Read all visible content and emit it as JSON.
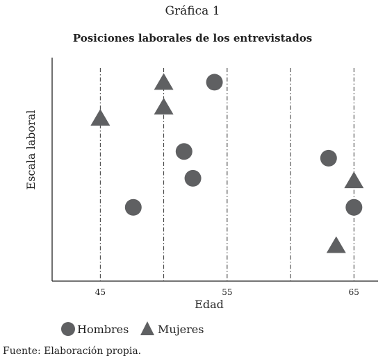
{
  "figure": {
    "number_label": "Gráfica 1",
    "source": "Fuente: Elaboración propia."
  },
  "chart_data": {
    "type": "scatter",
    "title": "Posiciones laborales de los entrevistados",
    "xlabel": "Edad",
    "ylabel": "Escala laboral",
    "xlim": [
      41.2,
      66.9
    ],
    "ylim": [
      0,
      10
    ],
    "x_ticks": [
      45,
      55,
      65
    ],
    "x_tick_labels": [
      "45",
      "55",
      "65"
    ],
    "vertical_dashdot_lines_at": [
      45,
      50,
      55,
      60,
      65
    ],
    "y_tick_labels": [],
    "grid": false,
    "legend_position": "bottom-left",
    "color": "#5f6062",
    "series": [
      {
        "name": "Hombres",
        "marker": "circle",
        "points": [
          [
            54,
            8.9
          ],
          [
            51.6,
            5.8
          ],
          [
            52.3,
            4.6
          ],
          [
            47.6,
            3.3
          ],
          [
            63,
            5.5
          ],
          [
            65,
            3.3
          ]
        ]
      },
      {
        "name": "Mujeres",
        "marker": "triangle",
        "points": [
          [
            50,
            8.9
          ],
          [
            50,
            7.8
          ],
          [
            45,
            7.3
          ],
          [
            65,
            4.5
          ],
          [
            63.6,
            1.6
          ]
        ]
      }
    ]
  }
}
